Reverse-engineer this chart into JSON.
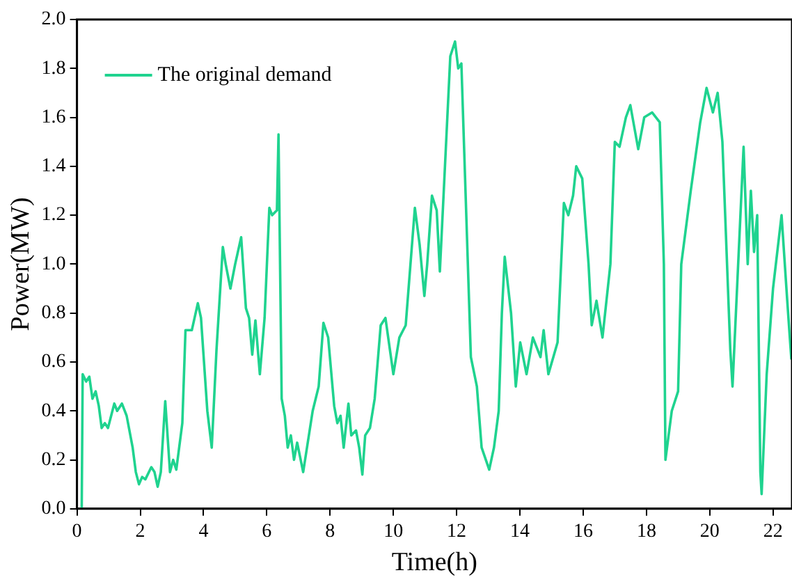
{
  "chart_data": {
    "type": "line",
    "xlabel": "Time(h)",
    "ylabel": "Power(MW)",
    "xlim": [
      0,
      22.6
    ],
    "xticks": [
      0,
      2,
      4,
      6,
      8,
      10,
      12,
      14,
      16,
      18,
      20,
      22
    ],
    "ylim": [
      0,
      2
    ],
    "yticks": [
      {
        "value": 0,
        "label": "0.0"
      },
      0.2,
      0.4,
      0.6,
      0.8,
      {
        "value": 1,
        "label": "1.0"
      },
      1.2,
      1.4,
      1.6,
      1.8,
      {
        "value": 2,
        "label": "2.0"
      }
    ],
    "grid": false,
    "legend": "top left",
    "marker": "none",
    "line_style": "solid",
    "series": [
      {
        "name": "The original demand",
        "color": "#1fd38f",
        "x": [
          0.15,
          0.18,
          0.29,
          0.39,
          0.49,
          0.59,
          0.69,
          0.78,
          0.88,
          0.98,
          1.08,
          1.18,
          1.27,
          1.42,
          1.57,
          1.76,
          1.86,
          1.96,
          2.06,
          2.16,
          2.35,
          2.45,
          2.55,
          2.65,
          2.79,
          2.94,
          3.04,
          3.14,
          3.33,
          3.43,
          3.63,
          3.82,
          3.92,
          4.12,
          4.26,
          4.41,
          4.61,
          4.7,
          4.85,
          5.0,
          5.19,
          5.34,
          5.44,
          5.54,
          5.64,
          5.78,
          5.93,
          6.08,
          6.17,
          6.32,
          6.37,
          6.47,
          6.57,
          6.66,
          6.76,
          6.86,
          6.96,
          7.15,
          7.45,
          7.64,
          7.79,
          7.94,
          8.13,
          8.23,
          8.33,
          8.43,
          8.58,
          8.67,
          8.82,
          8.92,
          9.02,
          9.11,
          9.26,
          9.41,
          9.6,
          9.75,
          10.0,
          10.19,
          10.39,
          10.68,
          10.83,
          10.98,
          11.07,
          11.22,
          11.37,
          11.47,
          11.8,
          11.95,
          12.05,
          12.15,
          12.45,
          12.64,
          12.79,
          13.03,
          13.18,
          13.33,
          13.43,
          13.52,
          13.72,
          13.87,
          14.01,
          14.21,
          14.41,
          14.65,
          14.75,
          14.9,
          15.19,
          15.39,
          15.53,
          15.68,
          15.78,
          15.97,
          16.17,
          16.27,
          16.42,
          16.61,
          16.86,
          17.0,
          17.15,
          17.35,
          17.49,
          17.74,
          17.93,
          18.18,
          18.42,
          18.55,
          18.6,
          18.8,
          19.0,
          19.1,
          19.4,
          19.7,
          19.9,
          20.1,
          20.25,
          20.4,
          20.65,
          20.72,
          21.07,
          21.2,
          21.3,
          21.4,
          21.5,
          21.6,
          21.64,
          21.8,
          22.0,
          22.27,
          22.45,
          22.58
        ],
        "values": [
          0.0,
          0.55,
          0.52,
          0.54,
          0.45,
          0.48,
          0.42,
          0.33,
          0.35,
          0.33,
          0.38,
          0.43,
          0.4,
          0.43,
          0.38,
          0.25,
          0.15,
          0.1,
          0.13,
          0.12,
          0.17,
          0.15,
          0.09,
          0.15,
          0.44,
          0.15,
          0.2,
          0.16,
          0.35,
          0.73,
          0.73,
          0.84,
          0.78,
          0.4,
          0.25,
          0.65,
          1.07,
          1.0,
          0.9,
          1.0,
          1.11,
          0.82,
          0.78,
          0.63,
          0.77,
          0.55,
          0.78,
          1.23,
          1.2,
          1.22,
          1.53,
          0.45,
          0.38,
          0.25,
          0.3,
          0.2,
          0.27,
          0.15,
          0.4,
          0.5,
          0.76,
          0.7,
          0.42,
          0.35,
          0.38,
          0.25,
          0.43,
          0.3,
          0.32,
          0.25,
          0.14,
          0.3,
          0.33,
          0.45,
          0.75,
          0.78,
          0.55,
          0.7,
          0.75,
          1.23,
          1.08,
          0.87,
          1.0,
          1.28,
          1.22,
          0.97,
          1.85,
          1.91,
          1.8,
          1.82,
          0.62,
          0.5,
          0.25,
          0.16,
          0.25,
          0.4,
          0.8,
          1.03,
          0.8,
          0.5,
          0.68,
          0.55,
          0.7,
          0.62,
          0.73,
          0.55,
          0.68,
          1.25,
          1.2,
          1.28,
          1.4,
          1.35,
          1.0,
          0.75,
          0.85,
          0.7,
          1.0,
          1.5,
          1.48,
          1.6,
          1.65,
          1.47,
          1.6,
          1.62,
          1.58,
          1.0,
          0.2,
          0.4,
          0.48,
          1.0,
          1.3,
          1.58,
          1.72,
          1.62,
          1.7,
          1.5,
          0.65,
          0.5,
          1.48,
          1.0,
          1.3,
          1.05,
          1.2,
          0.15,
          0.06,
          0.55,
          0.9,
          1.2,
          0.85,
          0.61
        ]
      }
    ]
  }
}
